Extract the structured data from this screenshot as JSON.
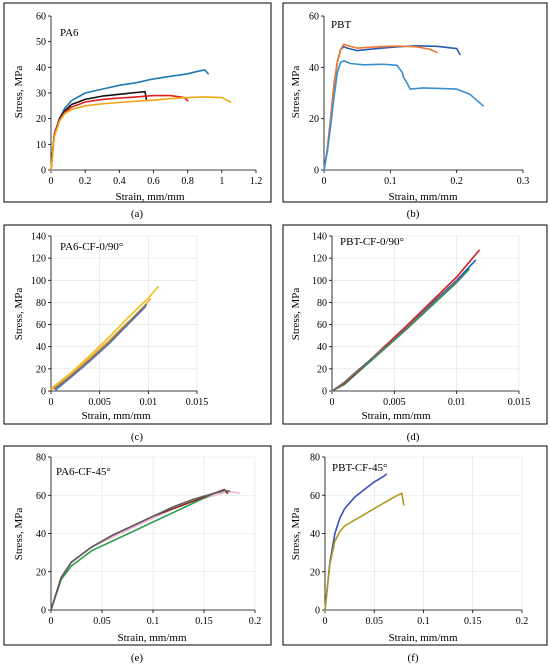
{
  "chart_data": [
    {
      "type": "line",
      "title": "PA6",
      "caption": "(a)",
      "xlabel": "Strain, mm/mm",
      "ylabel": "Stress, MPa",
      "xlim": [
        0,
        1.2
      ],
      "ylim": [
        0,
        60
      ],
      "xticks": [
        "0",
        "0.2",
        "0.4",
        "0.6",
        "0.8",
        "1",
        "1.2"
      ],
      "yticks": [
        "0",
        "10",
        "20",
        "30",
        "40",
        "50",
        "60"
      ],
      "grid": false,
      "series": [
        {
          "color": "#1f78b4",
          "x": [
            0,
            0.02,
            0.05,
            0.08,
            0.12,
            0.2,
            0.3,
            0.4,
            0.5,
            0.6,
            0.7,
            0.8,
            0.85,
            0.9,
            0.92
          ],
          "y": [
            0,
            14,
            20,
            24,
            27,
            30,
            31.5,
            33,
            34,
            35.5,
            36.5,
            37.5,
            38.3,
            39,
            37.5
          ]
        },
        {
          "color": "#111111",
          "x": [
            0,
            0.02,
            0.05,
            0.08,
            0.12,
            0.2,
            0.3,
            0.4,
            0.5,
            0.55,
            0.56
          ],
          "y": [
            0,
            14,
            20,
            23,
            25.5,
            27.5,
            28.8,
            29.5,
            30.2,
            30.5,
            27
          ]
        },
        {
          "color": "#e02020",
          "x": [
            0,
            0.02,
            0.05,
            0.08,
            0.12,
            0.2,
            0.3,
            0.4,
            0.5,
            0.6,
            0.7,
            0.78,
            0.8
          ],
          "y": [
            0,
            14,
            19.5,
            22.5,
            24.5,
            26.5,
            27.5,
            28,
            28.5,
            29,
            29,
            28.2,
            27
          ]
        },
        {
          "color": "#f0a818",
          "x": [
            0,
            0.02,
            0.05,
            0.08,
            0.12,
            0.2,
            0.3,
            0.4,
            0.5,
            0.6,
            0.7,
            0.8,
            0.9,
            1,
            1.05
          ],
          "y": [
            0,
            13,
            19,
            22,
            23.5,
            25,
            25.8,
            26.3,
            26.8,
            27.2,
            27.8,
            28.2,
            28.5,
            28.2,
            26.5
          ]
        }
      ]
    },
    {
      "type": "line",
      "title": "PBT",
      "caption": "(b)",
      "xlabel": "Strain, mm/mm",
      "ylabel": "Stress, MPa",
      "xlim": [
        0,
        0.3
      ],
      "ylim": [
        0,
        60
      ],
      "xticks": [
        "0",
        "0.1",
        "0.2",
        "0.3"
      ],
      "yticks": [
        "0",
        "20",
        "40",
        "60"
      ],
      "grid": false,
      "series": [
        {
          "color": "#2a5cae",
          "x": [
            0,
            0.005,
            0.01,
            0.015,
            0.02,
            0.025,
            0.03,
            0.035,
            0.05,
            0.08,
            0.11,
            0.14,
            0.17,
            0.2,
            0.205
          ],
          "y": [
            0,
            8,
            20,
            33,
            42,
            47,
            48,
            47.5,
            46.5,
            47.3,
            48,
            48.4,
            48.2,
            47.3,
            45
          ]
        },
        {
          "color": "#f07830",
          "x": [
            0,
            0.005,
            0.01,
            0.015,
            0.02,
            0.025,
            0.03,
            0.035,
            0.05,
            0.08,
            0.11,
            0.14,
            0.16,
            0.17
          ],
          "y": [
            0,
            8,
            20,
            33,
            42,
            47,
            49,
            48.5,
            47.5,
            48,
            48.3,
            48,
            47,
            45.8
          ]
        },
        {
          "color": "#3a8fd0",
          "x": [
            0,
            0.005,
            0.01,
            0.015,
            0.02,
            0.025,
            0.03,
            0.04,
            0.06,
            0.09,
            0.11,
            0.118,
            0.12,
            0.125,
            0.13,
            0.15,
            0.2,
            0.22,
            0.24
          ],
          "y": [
            0,
            7,
            17,
            28,
            38,
            42,
            42.5,
            41.5,
            41,
            41.2,
            40.8,
            38,
            36,
            34,
            31.5,
            32,
            31.5,
            29.5,
            25
          ]
        }
      ]
    },
    {
      "type": "line",
      "title": "PA6-CF-0/90°",
      "caption": "(c)",
      "xlabel": "Strain, mm/mm",
      "ylabel": "Stress, MPa",
      "xlim": [
        0,
        0.015
      ],
      "ylim": [
        0,
        140
      ],
      "xticks": [
        "0",
        "0.005",
        "0.01",
        "0.015"
      ],
      "yticks": [
        "0",
        "20",
        "40",
        "60",
        "80",
        "100",
        "120",
        "140"
      ],
      "grid": true,
      "series": [
        {
          "color": "#e8c020",
          "x": [
            0,
            0.002,
            0.004,
            0.006,
            0.008,
            0.01,
            0.011
          ],
          "y": [
            2,
            16,
            32,
            49,
            67,
            84,
            94
          ]
        },
        {
          "color": "#f0a030",
          "x": [
            0,
            0.002,
            0.004,
            0.006,
            0.008,
            0.0095,
            0.0102
          ],
          "y": [
            1,
            14,
            30,
            46,
            63,
            76,
            83
          ]
        },
        {
          "color": "#5a7fd0",
          "x": [
            0.0005,
            0.002,
            0.004,
            0.006,
            0.008,
            0.0097
          ],
          "y": [
            1,
            12,
            27,
            43,
            61,
            76
          ]
        },
        {
          "color": "#707070",
          "x": [
            0.0004,
            0.002,
            0.004,
            0.006,
            0.008,
            0.0098
          ],
          "y": [
            2,
            13,
            28,
            44,
            62,
            78
          ]
        }
      ]
    },
    {
      "type": "line",
      "title": "PBT-CF-0/90°",
      "caption": "(d)",
      "xlabel": "Strain, mm/mm",
      "ylabel": "Stress, MPa",
      "xlim": [
        0,
        0.015
      ],
      "ylim": [
        0,
        140
      ],
      "xticks": [
        "0",
        "0.005",
        "0.01",
        "0.015"
      ],
      "yticks": [
        "0",
        "20",
        "40",
        "60",
        "80",
        "100",
        "120",
        "140"
      ],
      "grid": true,
      "series": [
        {
          "color": "#20a040",
          "x": [
            0,
            0.001,
            0.002,
            0.004,
            0.006,
            0.008,
            0.01,
            0.011
          ],
          "y": [
            0,
            6,
            16,
            36,
            56,
            77,
            98,
            110
          ]
        },
        {
          "color": "#2060c0",
          "x": [
            0,
            0.001,
            0.002,
            0.004,
            0.006,
            0.008,
            0.01,
            0.0115
          ],
          "y": [
            0,
            7,
            17,
            37,
            57,
            79,
            100,
            118
          ]
        },
        {
          "color": "#d02020",
          "x": [
            0,
            0.001,
            0.002,
            0.004,
            0.006,
            0.008,
            0.01,
            0.0118
          ],
          "y": [
            0,
            7,
            17,
            38,
            59,
            81,
            103,
            127
          ]
        },
        {
          "color": "#707070",
          "x": [
            0,
            0.001,
            0.002,
            0.004,
            0.006,
            0.008,
            0.0105
          ],
          "y": [
            0,
            8,
            18,
            37,
            57,
            78,
            104
          ]
        }
      ]
    },
    {
      "type": "line",
      "title": "PA6-CF-45°",
      "caption": "(e)",
      "xlabel": "Strain, mm/mm",
      "ylabel": "Stress, MPa",
      "xlim": [
        0,
        0.2
      ],
      "ylim": [
        0,
        80
      ],
      "xticks": [
        "0",
        "0.05",
        "0.1",
        "0.15",
        "0.2"
      ],
      "yticks": [
        "0",
        "20",
        "40",
        "60",
        "80"
      ],
      "grid": true,
      "series": [
        {
          "color": "#f4b8d8",
          "x": [
            0,
            0.01,
            0.02,
            0.04,
            0.06,
            0.08,
            0.1,
            0.12,
            0.14,
            0.16,
            0.175,
            0.185
          ],
          "y": [
            0,
            17,
            25,
            33,
            38,
            43,
            48,
            53,
            57,
            60,
            62,
            61
          ]
        },
        {
          "color": "#30a050",
          "x": [
            0,
            0.01,
            0.02,
            0.04,
            0.06,
            0.08,
            0.1,
            0.12,
            0.14,
            0.16,
            0.168
          ],
          "y": [
            0,
            16,
            23,
            31,
            36,
            41,
            46,
            51,
            56,
            61,
            62
          ]
        },
        {
          "color": "#8a2a2a",
          "x": [
            0,
            0.01,
            0.02,
            0.04,
            0.06,
            0.08,
            0.1,
            0.12,
            0.14,
            0.16,
            0.17,
            0.173
          ],
          "y": [
            0,
            17,
            25,
            33,
            39,
            44,
            49,
            53,
            57,
            61,
            63,
            61
          ]
        },
        {
          "color": "#606060",
          "x": [
            0,
            0.01,
            0.02,
            0.04,
            0.06,
            0.08,
            0.1,
            0.12,
            0.14,
            0.16,
            0.17,
            0.175
          ],
          "y": [
            0,
            17,
            25,
            33,
            39,
            44,
            49,
            54,
            58,
            61,
            62.5,
            62
          ]
        }
      ]
    },
    {
      "type": "line",
      "title": "PBT-CF-45°",
      "caption": "(f)",
      "xlabel": "Strain, mm/mm",
      "ylabel": "Stress, MPa",
      "xlim": [
        0,
        0.2
      ],
      "ylim": [
        0,
        80
      ],
      "xticks": [
        "0",
        "0.05",
        "0.1",
        "0.15",
        "0.2"
      ],
      "yticks": [
        "0",
        "20",
        "40",
        "60",
        "80"
      ],
      "grid": true,
      "series": [
        {
          "color": "#3a4fbf",
          "x": [
            0,
            0.002,
            0.005,
            0.01,
            0.015,
            0.02,
            0.03,
            0.04,
            0.05,
            0.06,
            0.062
          ],
          "y": [
            0,
            10,
            25,
            40,
            48,
            53,
            59,
            63,
            67,
            70,
            71
          ]
        },
        {
          "color": "#b09820",
          "x": [
            0,
            0.002,
            0.005,
            0.01,
            0.015,
            0.02,
            0.03,
            0.04,
            0.05,
            0.06,
            0.07,
            0.078,
            0.08
          ],
          "y": [
            0,
            10,
            24,
            36,
            41,
            44,
            47,
            50,
            53,
            56,
            59,
            61,
            55
          ]
        }
      ]
    }
  ]
}
